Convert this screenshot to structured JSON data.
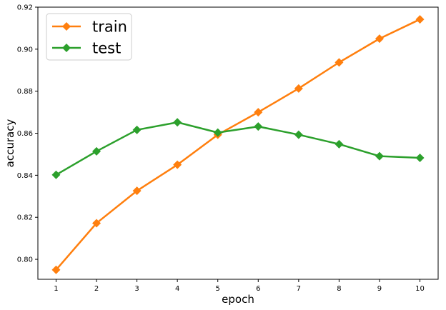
{
  "chart_data": {
    "type": "line",
    "xlabel": "epoch",
    "ylabel": "accuracy",
    "x": [
      1,
      2,
      3,
      4,
      5,
      6,
      7,
      8,
      9,
      10
    ],
    "xticks": [
      "1",
      "2",
      "3",
      "4",
      "5",
      "6",
      "7",
      "8",
      "9",
      "10"
    ],
    "yticks": [
      "0.80",
      "0.82",
      "0.84",
      "0.86",
      "0.88",
      "0.90",
      "0.92"
    ],
    "ylim": [
      0.7905,
      0.92
    ],
    "xlim": [
      0.55,
      10.45
    ],
    "grid": false,
    "legend_position": "top-left",
    "marker": "diamond",
    "series": [
      {
        "name": "train",
        "color": "#ff7f0e",
        "values": [
          0.795,
          0.8172,
          0.8326,
          0.845,
          0.8593,
          0.87,
          0.8813,
          0.8937,
          0.905,
          0.9142
        ]
      },
      {
        "name": "test",
        "color": "#2ca02c",
        "values": [
          0.8402,
          0.8514,
          0.8616,
          0.8652,
          0.8603,
          0.8632,
          0.8593,
          0.8548,
          0.8491,
          0.8483
        ]
      }
    ]
  }
}
